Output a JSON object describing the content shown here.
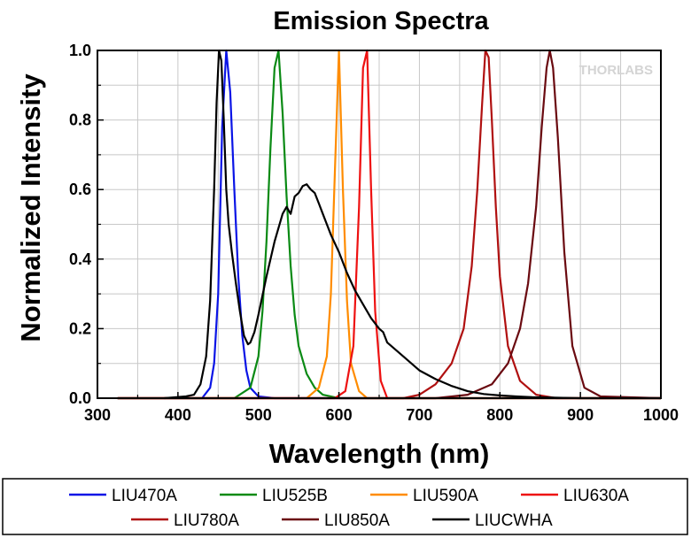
{
  "chart_data": {
    "type": "line",
    "title": "Emission Spectra",
    "xlabel": "Wavelength (nm)",
    "ylabel": "Normalized Intensity",
    "xlim": [
      300,
      1000
    ],
    "ylim": [
      0,
      1.0
    ],
    "x_ticks": [
      300,
      400,
      500,
      600,
      700,
      800,
      900,
      1000
    ],
    "y_ticks": [
      0.0,
      0.2,
      0.4,
      0.6,
      0.8,
      1.0
    ],
    "y_tick_labels": [
      "0.0",
      "0.2",
      "0.4",
      "0.6",
      "0.8",
      "1.0"
    ],
    "grid": true,
    "legend_position": "bottom",
    "watermark": "THORLABS",
    "series": [
      {
        "name": "LIU470A",
        "color": "#0a14e6",
        "x": [
          325,
          430,
          440,
          445,
          450,
          455,
          460,
          465,
          470,
          475,
          480,
          485,
          490,
          500,
          520,
          1000
        ],
        "y": [
          0,
          0.0,
          0.03,
          0.1,
          0.3,
          0.78,
          1.0,
          0.88,
          0.6,
          0.35,
          0.18,
          0.08,
          0.03,
          0.005,
          0,
          0
        ]
      },
      {
        "name": "LIU525B",
        "color": "#0a8a14",
        "x": [
          325,
          470,
          490,
          500,
          505,
          510,
          515,
          520,
          525,
          530,
          535,
          540,
          545,
          550,
          560,
          570,
          580,
          600,
          1000
        ],
        "y": [
          0,
          0,
          0.03,
          0.12,
          0.25,
          0.45,
          0.72,
          0.95,
          1.0,
          0.82,
          0.58,
          0.38,
          0.24,
          0.15,
          0.07,
          0.03,
          0.01,
          0,
          0
        ]
      },
      {
        "name": "LIU590A",
        "color": "#ff8c00",
        "x": [
          325,
          560,
          575,
          585,
          590,
          595,
          600,
          605,
          610,
          615,
          625,
          635,
          1000
        ],
        "y": [
          0,
          0,
          0.03,
          0.12,
          0.3,
          0.65,
          1.0,
          0.6,
          0.28,
          0.1,
          0.02,
          0,
          0
        ]
      },
      {
        "name": "LIU630A",
        "color": "#ee1111",
        "x": [
          325,
          595,
          608,
          618,
          625,
          630,
          635,
          640,
          645,
          652,
          660,
          1000
        ],
        "y": [
          0,
          0,
          0.02,
          0.15,
          0.55,
          0.95,
          1.0,
          0.6,
          0.25,
          0.05,
          0,
          0
        ]
      },
      {
        "name": "LIU780A",
        "color": "#b01010",
        "x": [
          325,
          680,
          700,
          720,
          740,
          755,
          765,
          772,
          778,
          782,
          786,
          790,
          795,
          800,
          810,
          825,
          845,
          870,
          1000
        ],
        "y": [
          0,
          0,
          0.01,
          0.04,
          0.1,
          0.2,
          0.38,
          0.6,
          0.85,
          1.0,
          0.98,
          0.8,
          0.55,
          0.35,
          0.15,
          0.05,
          0.01,
          0,
          0
        ]
      },
      {
        "name": "LIU850A",
        "color": "#6a0a10",
        "x": [
          325,
          720,
          760,
          790,
          810,
          825,
          835,
          845,
          852,
          858,
          862,
          866,
          872,
          880,
          890,
          905,
          925,
          1000
        ],
        "y": [
          0,
          0,
          0.01,
          0.04,
          0.1,
          0.2,
          0.33,
          0.55,
          0.78,
          0.95,
          1.0,
          0.95,
          0.75,
          0.42,
          0.15,
          0.03,
          0.005,
          0
        ]
      },
      {
        "name": "LIUCWHA",
        "color": "#000000",
        "x": [
          383,
          410,
          420,
          428,
          435,
          440,
          445,
          448,
          451,
          454,
          457,
          460,
          463,
          467,
          472,
          477,
          482,
          487,
          490,
          495,
          500,
          510,
          520,
          530,
          535,
          540,
          545,
          550,
          555,
          560,
          565,
          570,
          575,
          580,
          590,
          600,
          610,
          620,
          630,
          640,
          650,
          655,
          660,
          680,
          700,
          720,
          740,
          760,
          780,
          800,
          820,
          840,
          860,
          880,
          900,
          920,
          940,
          960,
          980,
          1000
        ],
        "y": [
          0.0,
          0.005,
          0.01,
          0.04,
          0.12,
          0.28,
          0.6,
          0.85,
          1.0,
          0.97,
          0.8,
          0.6,
          0.5,
          0.42,
          0.33,
          0.25,
          0.18,
          0.155,
          0.16,
          0.19,
          0.24,
          0.35,
          0.45,
          0.53,
          0.55,
          0.53,
          0.58,
          0.59,
          0.61,
          0.615,
          0.6,
          0.59,
          0.56,
          0.53,
          0.47,
          0.42,
          0.36,
          0.31,
          0.27,
          0.23,
          0.2,
          0.19,
          0.16,
          0.12,
          0.08,
          0.055,
          0.035,
          0.02,
          0.012,
          0.008,
          0.005,
          0.003,
          0.002,
          0.001,
          0,
          0,
          0,
          0,
          0,
          0
        ]
      }
    ]
  }
}
